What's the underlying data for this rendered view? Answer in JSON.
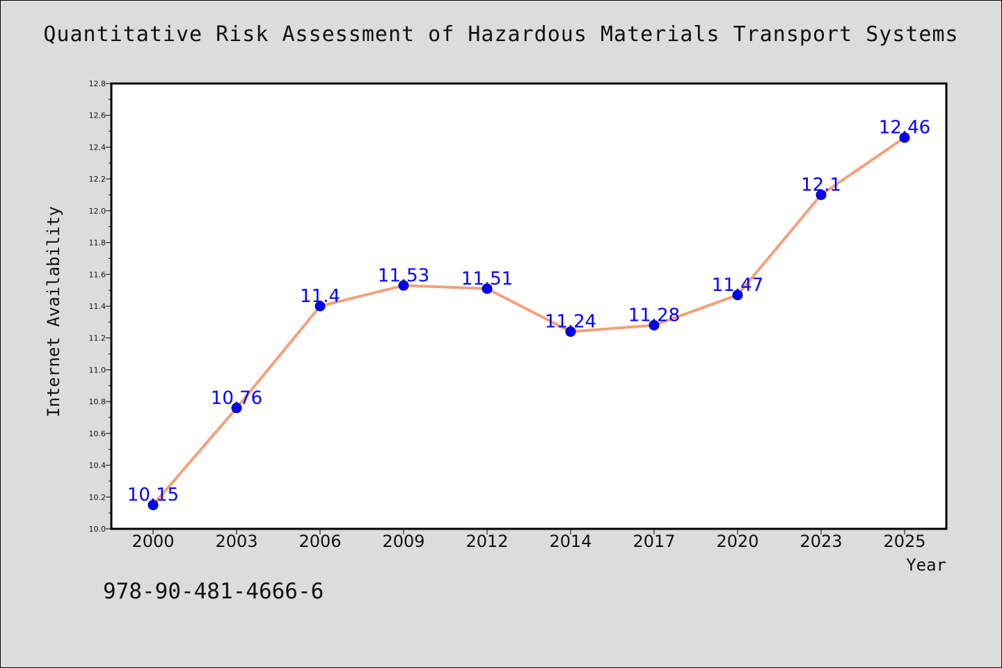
{
  "title": "Quantitative Risk Assessment of Hazardous Materials Transport Systems",
  "footer_text": "978-90-481-4666-6",
  "colors": {
    "background": "#dcdcdc",
    "plot_background": "#ffffff",
    "line": "#f5a07a",
    "marker_fill": "#0000ff",
    "marker_edge": "#00008b",
    "label": "#0000ff"
  },
  "chart_data": {
    "type": "line",
    "title": "Quantitative Risk Assessment of Hazardous Materials Transport Systems",
    "xlabel": "Year",
    "ylabel": "Internet Availability",
    "categories": [
      "2000",
      "2003",
      "2006",
      "2009",
      "2012",
      "2014",
      "2017",
      "2020",
      "2023",
      "2025"
    ],
    "values": [
      10.15,
      10.76,
      11.4,
      11.53,
      11.51,
      11.24,
      11.28,
      11.47,
      12.1,
      12.46
    ],
    "data_labels": [
      "10.15",
      "10.76",
      "11.4",
      "11.53",
      "11.51",
      "11.24",
      "11.28",
      "11.47",
      "12.1",
      "12.46"
    ],
    "ylim": [
      10.0,
      12.8
    ],
    "y_ticks": [
      "10.0",
      "10.2",
      "10.4",
      "10.6",
      "10.8",
      "11.0",
      "11.2",
      "11.4",
      "11.6",
      "11.8",
      "12.0",
      "12.2",
      "12.4",
      "12.6",
      "12.8"
    ],
    "grid": false,
    "legend": "none"
  }
}
